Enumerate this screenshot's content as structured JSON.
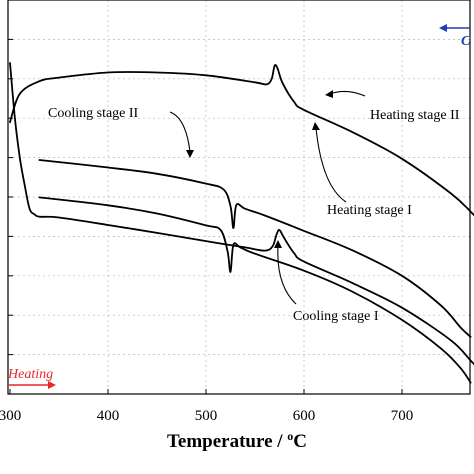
{
  "chart_data": {
    "type": "line",
    "xlabel": "Temperature / °C",
    "xlabel_text": "Temperature / ",
    "xlabel_degree": "o",
    "xlabel_unit": "C",
    "xlim": [
      300,
      780
    ],
    "ylim": [
      0,
      100
    ],
    "x_ticks": [
      300,
      400,
      500,
      600,
      700
    ],
    "x_tick_labels": [
      "300",
      "400",
      "500",
      "600",
      "700"
    ],
    "y_ticks_count": 10,
    "grid": true,
    "series": [
      {
        "name": "Heating stage I",
        "x": [
          300,
          305,
          310,
          315,
          320,
          325,
          330,
          350,
          400,
          450,
          500,
          540,
          560,
          568,
          572,
          575,
          580,
          590,
          600,
          650,
          700,
          750,
          770,
          780
        ],
        "y": [
          84,
          70,
          60,
          53,
          47,
          45.6,
          45,
          44.8,
          42.9,
          40.9,
          38.8,
          37.2,
          36.4,
          37.5,
          40.5,
          41.6,
          39.5,
          35.7,
          33.6,
          28.1,
          21.9,
          13.6,
          8.5,
          5.8
        ]
      },
      {
        "name": "Heating stage II",
        "x": [
          300,
          310,
          330,
          350,
          400,
          450,
          500,
          550,
          562,
          567,
          570,
          573,
          578,
          590,
          600,
          650,
          700,
          750,
          770,
          780
        ],
        "y": [
          69,
          76.2,
          79.4,
          80.3,
          81.6,
          81.6,
          80.9,
          79.1,
          78.6,
          80,
          83.3,
          82.7,
          79,
          74.1,
          72.1,
          66.4,
          59.7,
          50.9,
          46.3,
          43.6
        ]
      },
      {
        "name": "Cooling stage I",
        "x": [
          330,
          400,
          450,
          500,
          515,
          522,
          525,
          528,
          535,
          550,
          600,
          650,
          700,
          740,
          760,
          770
        ],
        "y": [
          49.9,
          47.9,
          45.8,
          42.8,
          41.6,
          36.2,
          31,
          37.9,
          37.2,
          35.6,
          31.3,
          25.9,
          18.8,
          11.5,
          6.5,
          2.9
        ]
      },
      {
        "name": "Cooling stage II",
        "x": [
          330,
          400,
          450,
          500,
          518,
          525,
          528,
          531,
          540,
          560,
          600,
          650,
          700,
          740,
          760,
          770
        ],
        "y": [
          59.4,
          57.5,
          55.9,
          53.4,
          51.9,
          47.7,
          42.1,
          48,
          47,
          45.3,
          41.4,
          36.4,
          30,
          22.4,
          16.8,
          14.5
        ]
      }
    ],
    "annotations": [
      "Cooling stage II",
      "Heating stage II",
      "Heating stage I",
      "Cooling stage I"
    ],
    "direction_labels": {
      "heating": "Heating",
      "cooling": "C"
    },
    "colors": {
      "curves": "#000000",
      "heating_arrow": "#e8272d",
      "cooling_arrow": "#1f3fb4",
      "grid": "#b9b9b9"
    }
  }
}
